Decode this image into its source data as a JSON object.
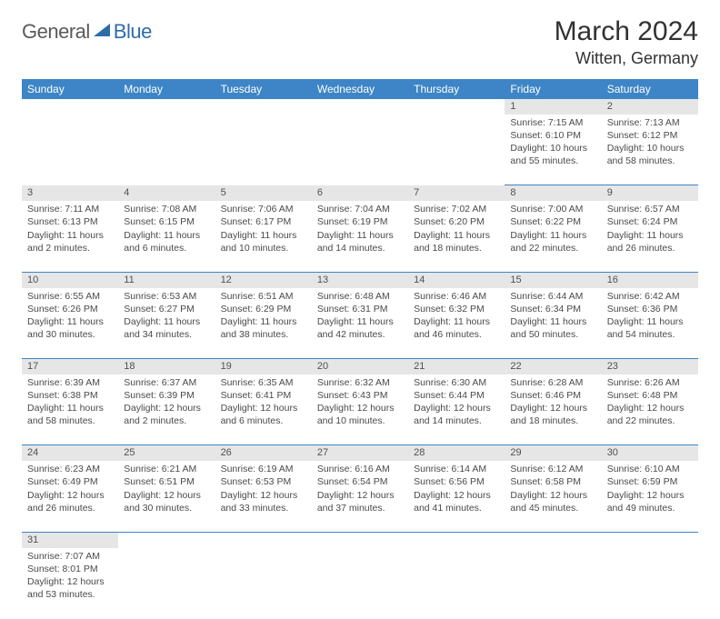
{
  "logo": {
    "text1": "General",
    "text2": "Blue",
    "tri_color": "#2e6ca8"
  },
  "title": "March 2024",
  "location": "Witten, Germany",
  "colors": {
    "header_bg": "#3d85c6",
    "daynum_bg": "#e6e6e6",
    "cell_border": "#3d85c6"
  },
  "day_headers": [
    "Sunday",
    "Monday",
    "Tuesday",
    "Wednesday",
    "Thursday",
    "Friday",
    "Saturday"
  ],
  "weeks": [
    [
      null,
      null,
      null,
      null,
      null,
      {
        "n": "1",
        "sr": "Sunrise: 7:15 AM",
        "ss": "Sunset: 6:10 PM",
        "d1": "Daylight: 10 hours",
        "d2": "and 55 minutes."
      },
      {
        "n": "2",
        "sr": "Sunrise: 7:13 AM",
        "ss": "Sunset: 6:12 PM",
        "d1": "Daylight: 10 hours",
        "d2": "and 58 minutes."
      }
    ],
    [
      {
        "n": "3",
        "sr": "Sunrise: 7:11 AM",
        "ss": "Sunset: 6:13 PM",
        "d1": "Daylight: 11 hours",
        "d2": "and 2 minutes."
      },
      {
        "n": "4",
        "sr": "Sunrise: 7:08 AM",
        "ss": "Sunset: 6:15 PM",
        "d1": "Daylight: 11 hours",
        "d2": "and 6 minutes."
      },
      {
        "n": "5",
        "sr": "Sunrise: 7:06 AM",
        "ss": "Sunset: 6:17 PM",
        "d1": "Daylight: 11 hours",
        "d2": "and 10 minutes."
      },
      {
        "n": "6",
        "sr": "Sunrise: 7:04 AM",
        "ss": "Sunset: 6:19 PM",
        "d1": "Daylight: 11 hours",
        "d2": "and 14 minutes."
      },
      {
        "n": "7",
        "sr": "Sunrise: 7:02 AM",
        "ss": "Sunset: 6:20 PM",
        "d1": "Daylight: 11 hours",
        "d2": "and 18 minutes."
      },
      {
        "n": "8",
        "sr": "Sunrise: 7:00 AM",
        "ss": "Sunset: 6:22 PM",
        "d1": "Daylight: 11 hours",
        "d2": "and 22 minutes."
      },
      {
        "n": "9",
        "sr": "Sunrise: 6:57 AM",
        "ss": "Sunset: 6:24 PM",
        "d1": "Daylight: 11 hours",
        "d2": "and 26 minutes."
      }
    ],
    [
      {
        "n": "10",
        "sr": "Sunrise: 6:55 AM",
        "ss": "Sunset: 6:26 PM",
        "d1": "Daylight: 11 hours",
        "d2": "and 30 minutes."
      },
      {
        "n": "11",
        "sr": "Sunrise: 6:53 AM",
        "ss": "Sunset: 6:27 PM",
        "d1": "Daylight: 11 hours",
        "d2": "and 34 minutes."
      },
      {
        "n": "12",
        "sr": "Sunrise: 6:51 AM",
        "ss": "Sunset: 6:29 PM",
        "d1": "Daylight: 11 hours",
        "d2": "and 38 minutes."
      },
      {
        "n": "13",
        "sr": "Sunrise: 6:48 AM",
        "ss": "Sunset: 6:31 PM",
        "d1": "Daylight: 11 hours",
        "d2": "and 42 minutes."
      },
      {
        "n": "14",
        "sr": "Sunrise: 6:46 AM",
        "ss": "Sunset: 6:32 PM",
        "d1": "Daylight: 11 hours",
        "d2": "and 46 minutes."
      },
      {
        "n": "15",
        "sr": "Sunrise: 6:44 AM",
        "ss": "Sunset: 6:34 PM",
        "d1": "Daylight: 11 hours",
        "d2": "and 50 minutes."
      },
      {
        "n": "16",
        "sr": "Sunrise: 6:42 AM",
        "ss": "Sunset: 6:36 PM",
        "d1": "Daylight: 11 hours",
        "d2": "and 54 minutes."
      }
    ],
    [
      {
        "n": "17",
        "sr": "Sunrise: 6:39 AM",
        "ss": "Sunset: 6:38 PM",
        "d1": "Daylight: 11 hours",
        "d2": "and 58 minutes."
      },
      {
        "n": "18",
        "sr": "Sunrise: 6:37 AM",
        "ss": "Sunset: 6:39 PM",
        "d1": "Daylight: 12 hours",
        "d2": "and 2 minutes."
      },
      {
        "n": "19",
        "sr": "Sunrise: 6:35 AM",
        "ss": "Sunset: 6:41 PM",
        "d1": "Daylight: 12 hours",
        "d2": "and 6 minutes."
      },
      {
        "n": "20",
        "sr": "Sunrise: 6:32 AM",
        "ss": "Sunset: 6:43 PM",
        "d1": "Daylight: 12 hours",
        "d2": "and 10 minutes."
      },
      {
        "n": "21",
        "sr": "Sunrise: 6:30 AM",
        "ss": "Sunset: 6:44 PM",
        "d1": "Daylight: 12 hours",
        "d2": "and 14 minutes."
      },
      {
        "n": "22",
        "sr": "Sunrise: 6:28 AM",
        "ss": "Sunset: 6:46 PM",
        "d1": "Daylight: 12 hours",
        "d2": "and 18 minutes."
      },
      {
        "n": "23",
        "sr": "Sunrise: 6:26 AM",
        "ss": "Sunset: 6:48 PM",
        "d1": "Daylight: 12 hours",
        "d2": "and 22 minutes."
      }
    ],
    [
      {
        "n": "24",
        "sr": "Sunrise: 6:23 AM",
        "ss": "Sunset: 6:49 PM",
        "d1": "Daylight: 12 hours",
        "d2": "and 26 minutes."
      },
      {
        "n": "25",
        "sr": "Sunrise: 6:21 AM",
        "ss": "Sunset: 6:51 PM",
        "d1": "Daylight: 12 hours",
        "d2": "and 30 minutes."
      },
      {
        "n": "26",
        "sr": "Sunrise: 6:19 AM",
        "ss": "Sunset: 6:53 PM",
        "d1": "Daylight: 12 hours",
        "d2": "and 33 minutes."
      },
      {
        "n": "27",
        "sr": "Sunrise: 6:16 AM",
        "ss": "Sunset: 6:54 PM",
        "d1": "Daylight: 12 hours",
        "d2": "and 37 minutes."
      },
      {
        "n": "28",
        "sr": "Sunrise: 6:14 AM",
        "ss": "Sunset: 6:56 PM",
        "d1": "Daylight: 12 hours",
        "d2": "and 41 minutes."
      },
      {
        "n": "29",
        "sr": "Sunrise: 6:12 AM",
        "ss": "Sunset: 6:58 PM",
        "d1": "Daylight: 12 hours",
        "d2": "and 45 minutes."
      },
      {
        "n": "30",
        "sr": "Sunrise: 6:10 AM",
        "ss": "Sunset: 6:59 PM",
        "d1": "Daylight: 12 hours",
        "d2": "and 49 minutes."
      }
    ],
    [
      {
        "n": "31",
        "sr": "Sunrise: 7:07 AM",
        "ss": "Sunset: 8:01 PM",
        "d1": "Daylight: 12 hours",
        "d2": "and 53 minutes."
      },
      null,
      null,
      null,
      null,
      null,
      null
    ]
  ]
}
